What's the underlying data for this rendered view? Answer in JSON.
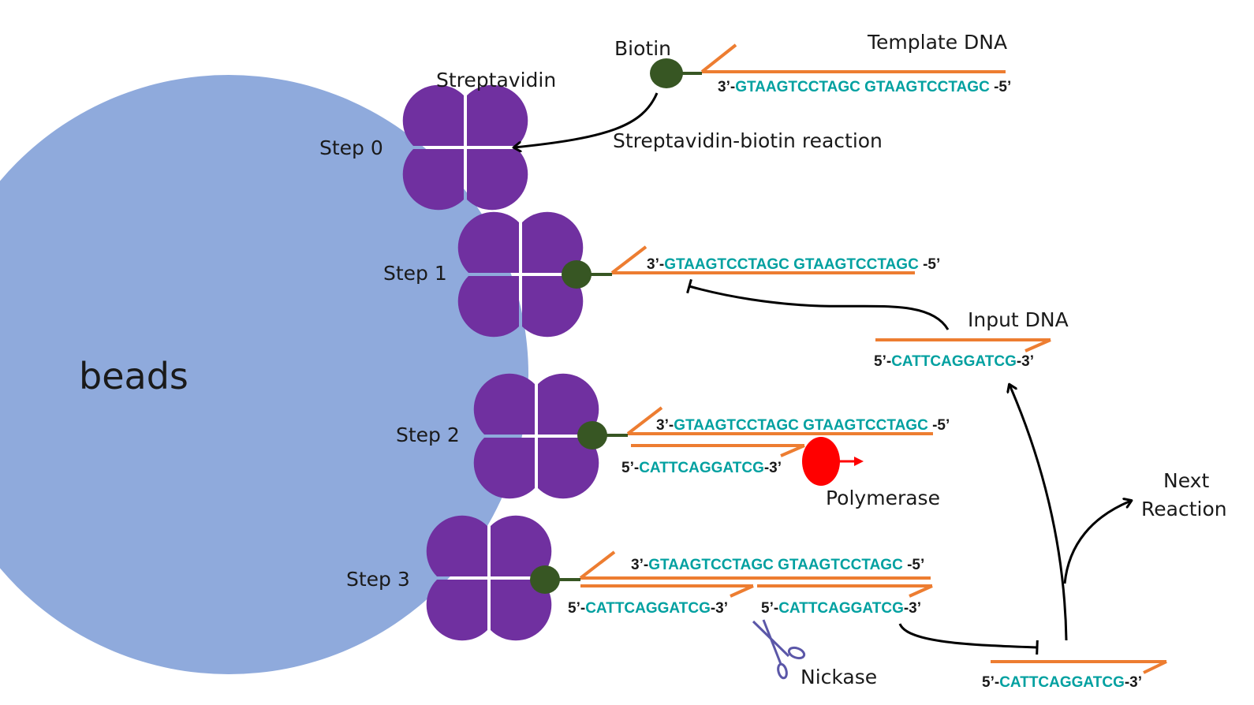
{
  "colors": {
    "bead": "#8faadc",
    "streptavidin": "#7030a0",
    "biotin": "#375623",
    "strand": "#ed7d31",
    "sequence": "#00a0a0",
    "polymerase": "#ff0000",
    "scissors": "#5b57a8",
    "arrow": "#000000"
  },
  "labels": {
    "beads": "beads",
    "biotin": "Biotin",
    "template_dna": "Template DNA",
    "streptavidin": "Streptavidin",
    "reaction": "Streptavidin-biotin reaction",
    "step0": "Step 0",
    "step1": "Step 1",
    "step2": "Step 2",
    "step3": "Step 3",
    "input_dna": "Input DNA",
    "polymerase": "Polymerase",
    "nickase": "Nickase",
    "next_reaction_1": "Next",
    "next_reaction_2": "Reaction"
  },
  "template_seq": {
    "prefix": "3’-",
    "body": "GTAAGTCCTAGC GTAAGTCCTAGC",
    "suffix": " -5’"
  },
  "input_seq": {
    "prefix": "5’-",
    "body": "CATTCAGGATCG",
    "suffix": "-3’"
  },
  "icons": {
    "scissors": "scissors-icon",
    "polymerase": "polymerase-icon",
    "biotin": "biotin-icon",
    "streptavidin": "streptavidin-icon"
  }
}
